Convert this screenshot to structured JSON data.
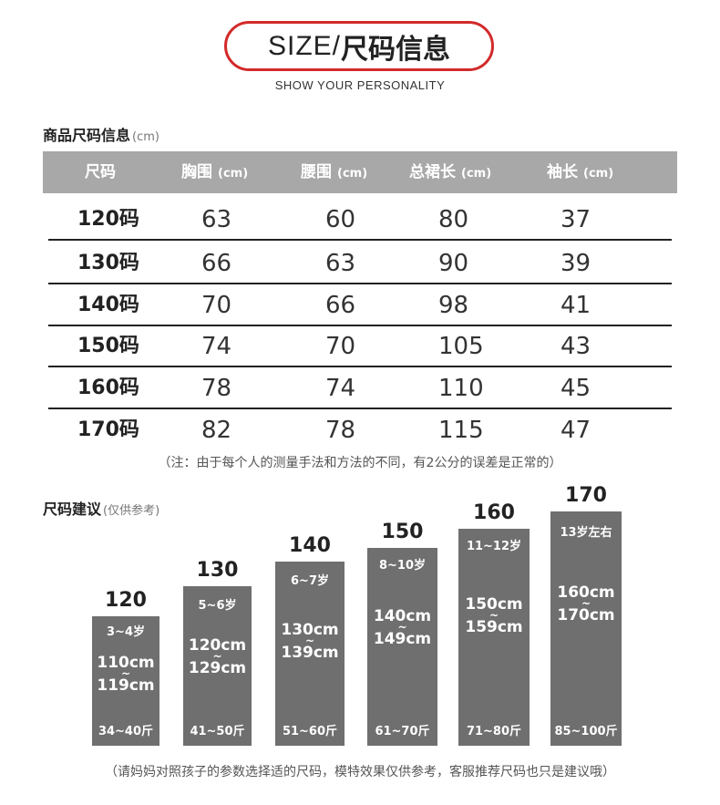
{
  "title": {
    "en": "SIZE/",
    "zh": "尺码信息",
    "subtitle": "SHOW YOUR PERSONALITY"
  },
  "size_table": {
    "label": "商品尺码信息",
    "unit": "(cm)",
    "headers": [
      {
        "name": "尺码",
        "unit": ""
      },
      {
        "name": "胸围",
        "unit": "(cm)"
      },
      {
        "name": "腰围",
        "unit": "(cm)"
      },
      {
        "name": "总裙长",
        "unit": "(cm)"
      },
      {
        "name": "袖长",
        "unit": "(cm)"
      }
    ],
    "rows": [
      [
        "120码",
        "63",
        "60",
        "80",
        "37"
      ],
      [
        "130码",
        "66",
        "63",
        "90",
        "39"
      ],
      [
        "140码",
        "70",
        "66",
        "98",
        "41"
      ],
      [
        "150码",
        "74",
        "70",
        "105",
        "43"
      ],
      [
        "160码",
        "78",
        "74",
        "110",
        "45"
      ],
      [
        "170码",
        "82",
        "78",
        "115",
        "47"
      ]
    ],
    "note": "（注：由于每个人的测量手法和方法的不同，有2公分的误差是正常的）"
  },
  "size_suggestion": {
    "label": "尺码建议",
    "label_note": "(仅供参考)",
    "tilde": "~",
    "bars": [
      {
        "size": "120",
        "age": "3~4岁",
        "height_from": "110cm",
        "height_to": "119cm",
        "weight": "34~40斤"
      },
      {
        "size": "130",
        "age": "5~6岁",
        "height_from": "120cm",
        "height_to": "129cm",
        "weight": "41~50斤"
      },
      {
        "size": "140",
        "age": "6~7岁",
        "height_from": "130cm",
        "height_to": "139cm",
        "weight": "51~60斤"
      },
      {
        "size": "150",
        "age": "8~10岁",
        "height_from": "140cm",
        "height_to": "149cm",
        "weight": "61~70斤"
      },
      {
        "size": "160",
        "age": "11~12岁",
        "height_from": "150cm",
        "height_to": "159cm",
        "weight": "71~80斤"
      },
      {
        "size": "170",
        "age": "13岁左右",
        "height_from": "160cm",
        "height_to": "170cm",
        "weight": "85~100斤"
      }
    ],
    "footer": "（请妈妈对照孩子的参数选择适的尺码，模特效果仅供参考，客服推荐尺码也只是建议哦）"
  },
  "colors": {
    "accent": "#d32a2a",
    "header_bg": "#a8a8a8",
    "bar_bg": "#6f6f6f"
  }
}
